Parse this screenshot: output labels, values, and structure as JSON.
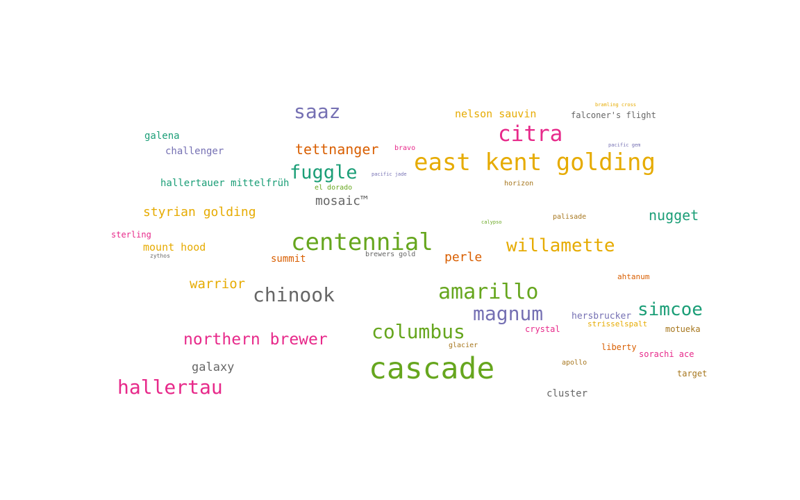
{
  "words": [
    {
      "text": "cascade",
      "color": "#66a61e"
    },
    {
      "text": "east kent golding",
      "color": "#e6ab02"
    },
    {
      "text": "centennial",
      "color": "#66a61e"
    },
    {
      "text": "citra",
      "color": "#e7298a"
    },
    {
      "text": "saaz",
      "color": "#7570b3"
    },
    {
      "text": "fuggle",
      "color": "#1b9e77"
    },
    {
      "text": "amarillo",
      "color": "#66a61e"
    },
    {
      "text": "chinook",
      "color": "#666666"
    },
    {
      "text": "hallertau",
      "color": "#e7298a"
    },
    {
      "text": "columbus",
      "color": "#66a61e"
    },
    {
      "text": "magnum",
      "color": "#7570b3"
    },
    {
      "text": "willamette",
      "color": "#e6ab02"
    },
    {
      "text": "simcoe",
      "color": "#1b9e77"
    },
    {
      "text": "northern brewer",
      "color": "#e7298a"
    },
    {
      "text": "tettnanger",
      "color": "#d95f02"
    },
    {
      "text": "nugget",
      "color": "#1b9e77"
    },
    {
      "text": "warrior",
      "color": "#e6ab02"
    },
    {
      "text": "styrian golding",
      "color": "#e6ab02"
    },
    {
      "text": "mosaic™",
      "color": "#666666"
    },
    {
      "text": "perle",
      "color": "#d95f02"
    },
    {
      "text": "galaxy",
      "color": "#666666"
    },
    {
      "text": "nelson sauvin",
      "color": "#e6ab02"
    },
    {
      "text": "mount hood",
      "color": "#e6ab02"
    },
    {
      "text": "hallertauer mittelfrüh",
      "color": "#1b9e77"
    },
    {
      "text": "challenger",
      "color": "#7570b3"
    },
    {
      "text": "galena",
      "color": "#1b9e77"
    },
    {
      "text": "summit",
      "color": "#d95f02"
    },
    {
      "text": "cluster",
      "color": "#666666"
    },
    {
      "text": "hersbrucker",
      "color": "#7570b3"
    },
    {
      "text": "falconer's flight",
      "color": "#666666"
    },
    {
      "text": "strisselspalt",
      "color": "#e6ab02"
    },
    {
      "text": "crystal",
      "color": "#e7298a"
    },
    {
      "text": "sorachi ace",
      "color": "#e7298a"
    },
    {
      "text": "motueka",
      "color": "#a6761d"
    },
    {
      "text": "sterling",
      "color": "#e7298a"
    },
    {
      "text": "liberty",
      "color": "#d95f02"
    },
    {
      "text": "target",
      "color": "#a6761d"
    },
    {
      "text": "ahtanum",
      "color": "#d95f02"
    },
    {
      "text": "brewers gold",
      "color": "#666666"
    },
    {
      "text": "horizon",
      "color": "#a6761d"
    },
    {
      "text": "palisade",
      "color": "#a6761d"
    },
    {
      "text": "glacier",
      "color": "#a6761d"
    },
    {
      "text": "apollo",
      "color": "#a6761d"
    },
    {
      "text": "el dorado",
      "color": "#66a61e"
    },
    {
      "text": "bravo",
      "color": "#e7298a"
    },
    {
      "text": "zythos",
      "color": "#666666"
    },
    {
      "text": "pacific jade",
      "color": "#7570b3"
    },
    {
      "text": "pacific gem",
      "color": "#7570b3"
    },
    {
      "text": "calypso",
      "color": "#66a61e"
    },
    {
      "text": "bramling cross",
      "color": "#e6ab02"
    }
  ]
}
